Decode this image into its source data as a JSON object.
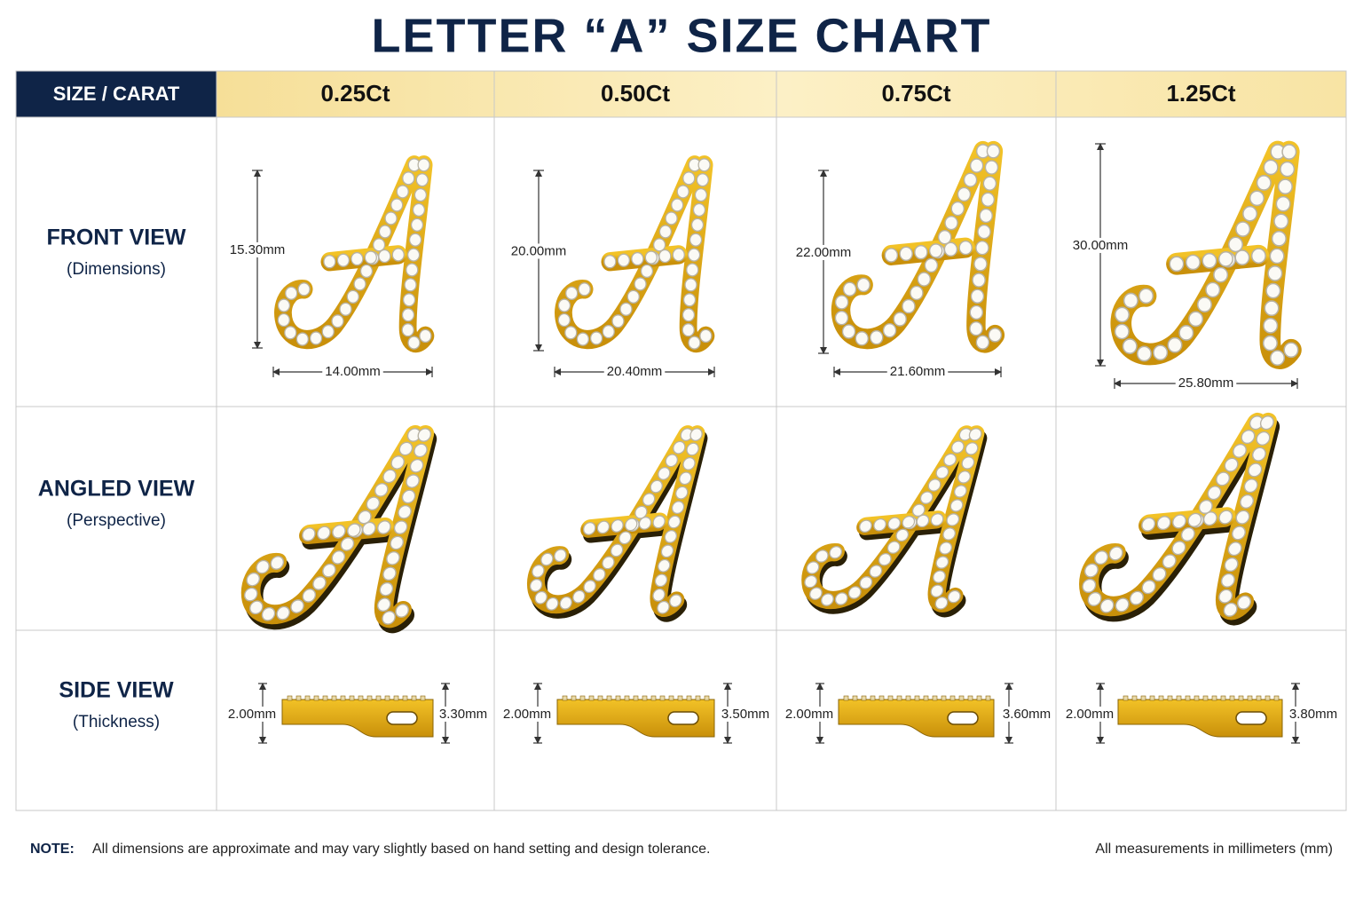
{
  "title": "LETTER “A” SIZE CHART",
  "table": {
    "header": [
      "SIZE / CARAT",
      "0.25Ct",
      "0.50Ct",
      "0.75Ct",
      "1.25Ct"
    ],
    "rows": [
      {
        "label": "FRONT VIEW",
        "sublabel": "(Dimensions)",
        "cells": [
          {
            "height": "15.30mm",
            "width": "14.00mm"
          },
          {
            "height": "20.00mm",
            "width": "20.40mm"
          },
          {
            "height": "22.00mm",
            "width": "21.60mm"
          },
          {
            "height": "30.00mm",
            "width": "25.80mm"
          }
        ]
      },
      {
        "label": "ANGLED VIEW",
        "sublabel": "(Perspective)"
      },
      {
        "label": "SIDE VIEW",
        "sublabel": "(Thickness)",
        "cells": [
          {
            "left": "2.00mm",
            "right": "3.30mm"
          },
          {
            "left": "2.00mm",
            "right": "3.50mm"
          },
          {
            "left": "2.00mm",
            "right": "3.60mm"
          },
          {
            "left": "2.00mm",
            "right": "3.80mm"
          }
        ]
      }
    ]
  },
  "footer": {
    "note_label": "NOTE:",
    "note": "All dimensions are approximate and may vary slightly based on hand setting and design tolerance.",
    "units": "All measurements in millimeters (mm)"
  }
}
